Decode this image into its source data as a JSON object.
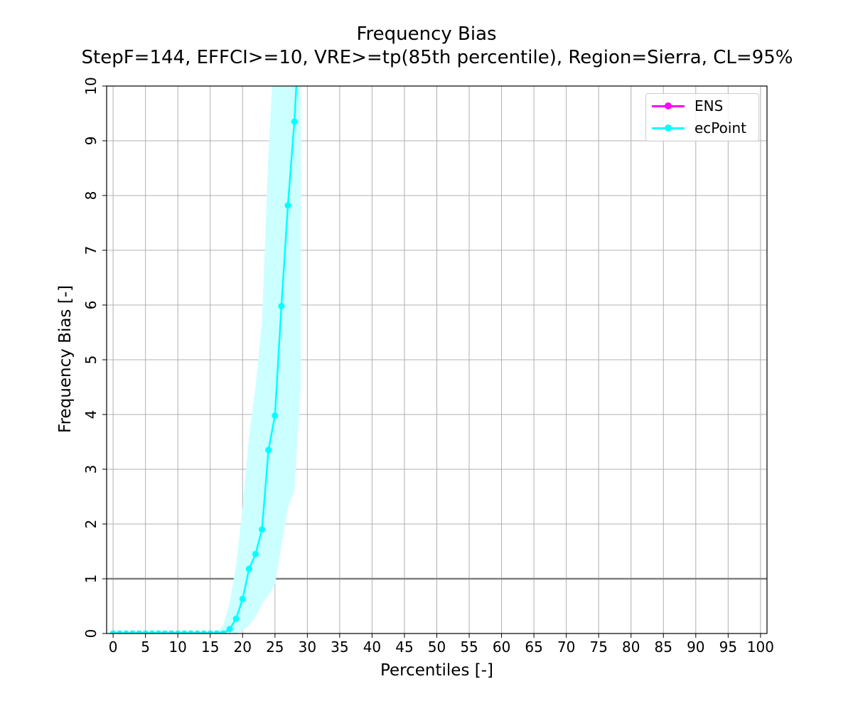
{
  "chart_data": {
    "type": "line",
    "title": "Frequency Bias",
    "subtitle": "StepF=144, EFFCI>=10, VRE>=tp(85th percentile), Region=Sierra, CL=95%",
    "xlabel": "Percentiles [-]",
    "ylabel": "Frequency Bias [-]",
    "xlim": [
      -1,
      101
    ],
    "ylim": [
      0,
      10
    ],
    "xticks": [
      0,
      5,
      10,
      15,
      20,
      25,
      30,
      35,
      40,
      45,
      50,
      55,
      60,
      65,
      70,
      75,
      80,
      85,
      90,
      95,
      100
    ],
    "yticks": [
      0,
      1,
      2,
      3,
      4,
      5,
      6,
      7,
      8,
      9,
      10
    ],
    "grid": true,
    "reference_line": {
      "y": 1,
      "color": "#808080"
    },
    "legend": {
      "location": "top-right",
      "entries": [
        "ENS",
        "ecPoint"
      ]
    },
    "colors": {
      "ENS": "#ff00ff",
      "ecPoint": "#00ffff",
      "ecPoint_band": "#ccffff"
    },
    "series": [
      {
        "name": "ENS",
        "color": "#ff00ff",
        "x": [],
        "y": []
      },
      {
        "name": "ecPoint",
        "color": "#00ffff",
        "x": [
          0,
          1,
          2,
          3,
          4,
          5,
          6,
          7,
          8,
          9,
          10,
          11,
          12,
          13,
          14,
          15,
          16,
          17,
          18,
          19,
          20,
          21,
          22,
          23,
          24,
          25,
          26,
          27,
          28,
          29
        ],
        "y": [
          0,
          0,
          0,
          0,
          0,
          0,
          0,
          0,
          0,
          0,
          0,
          0,
          0,
          0,
          0,
          0,
          0,
          0,
          0.08,
          0.27,
          0.63,
          1.18,
          1.45,
          1.9,
          3.35,
          3.98,
          5.98,
          7.82,
          9.35,
          11.5
        ],
        "ci_lower": [
          0,
          0,
          0,
          0,
          0,
          0,
          0,
          0,
          0,
          0,
          0,
          0,
          0,
          0,
          0,
          0,
          0,
          0,
          0,
          0,
          0.05,
          0.15,
          0.3,
          0.55,
          0.7,
          0.9,
          1.6,
          2.3,
          2.6,
          4.5
        ],
        "ci_upper": [
          0,
          0,
          0,
          0,
          0,
          0,
          0,
          0,
          0,
          0,
          0,
          0,
          0,
          0,
          0,
          0,
          0,
          0.15,
          0.55,
          1.25,
          2.3,
          3.6,
          4.5,
          5.7,
          8.8,
          11.0,
          12.0,
          12.0,
          12.0,
          12.0
        ]
      }
    ]
  }
}
